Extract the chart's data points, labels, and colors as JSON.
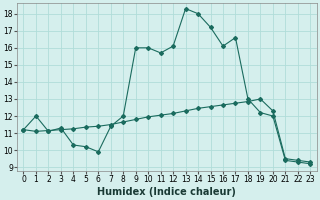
{
  "xlabel": "Humidex (Indice chaleur)",
  "background_color": "#d5efed",
  "grid_color": "#b0ddd9",
  "line_color": "#1a6b5e",
  "xlim": [
    -0.5,
    23.5
  ],
  "ylim": [
    8.8,
    18.6
  ],
  "yticks": [
    9,
    10,
    11,
    12,
    13,
    14,
    15,
    16,
    17,
    18
  ],
  "xticks": [
    0,
    1,
    2,
    3,
    4,
    5,
    6,
    7,
    8,
    9,
    10,
    11,
    12,
    13,
    14,
    15,
    16,
    17,
    18,
    19,
    20,
    21,
    22,
    23
  ],
  "curve1_x": [
    0,
    1,
    2,
    3,
    4,
    5,
    6,
    7,
    8,
    9,
    10,
    11,
    12,
    13,
    14,
    15,
    16,
    17,
    18,
    19,
    20,
    21,
    22,
    23
  ],
  "curve1_y": [
    11.2,
    12.0,
    11.1,
    11.3,
    10.3,
    10.2,
    9.9,
    11.4,
    12.0,
    16.0,
    16.0,
    15.7,
    16.1,
    18.3,
    18.0,
    17.2,
    16.1,
    16.6,
    13.0,
    12.2,
    12.0,
    9.4,
    9.3,
    9.2
  ],
  "curve2_x": [
    0,
    1,
    2,
    3,
    4,
    5,
    6,
    7,
    8,
    9,
    10,
    11,
    12,
    13,
    14,
    15,
    16,
    17,
    18,
    19,
    20,
    21,
    22,
    23
  ],
  "curve2_y": [
    11.2,
    11.1,
    11.15,
    11.2,
    11.25,
    11.35,
    11.4,
    11.5,
    11.65,
    11.8,
    11.95,
    12.05,
    12.15,
    12.3,
    12.45,
    12.55,
    12.65,
    12.75,
    12.85,
    13.0,
    12.3,
    9.5,
    9.4,
    9.3
  ],
  "xlabel_fontsize": 7,
  "tick_fontsize": 5.5
}
